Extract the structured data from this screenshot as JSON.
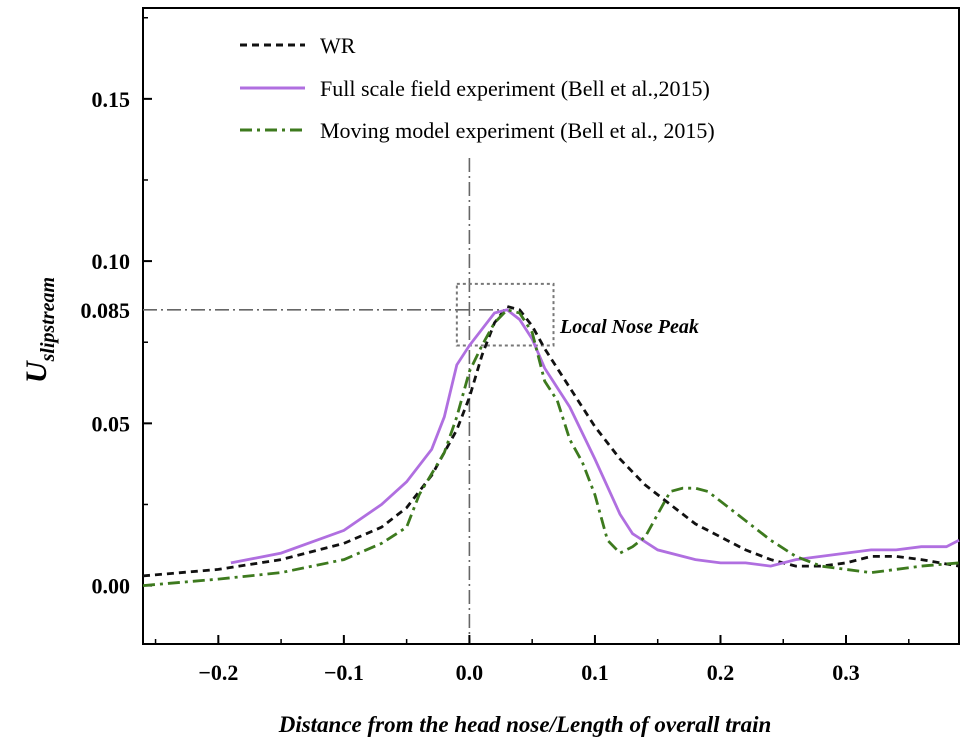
{
  "chart_data": {
    "type": "line",
    "title": "",
    "xlabel": "Distance from the head nose/Length of overall train",
    "ylabel": {
      "main": "U",
      "subscript": "slipstream"
    },
    "xlim": [
      -0.26,
      0.39
    ],
    "ylim": [
      -0.018,
      0.178
    ],
    "xticks": [
      -0.2,
      -0.1,
      0.0,
      0.1,
      0.2,
      0.3
    ],
    "xtick_labels": [
      "−0.2",
      "−0.1",
      "0.0",
      "0.1",
      "0.2",
      "0.3"
    ],
    "yticks": [
      0.0,
      0.05,
      0.1,
      0.15
    ],
    "ytick_labels": [
      "0.00",
      "0.05",
      "0.10",
      "0.15"
    ],
    "highlight": {
      "y_value": 0.085,
      "y_label": "0.085",
      "color": "#e03c3c"
    },
    "annotation": {
      "text": "Local Nose Peak",
      "box_x": [
        -0.01,
        0.067
      ],
      "box_y": [
        0.074,
        0.093
      ]
    },
    "reference_lines": {
      "vertical_x": 0.0,
      "horizontal_y": 0.085
    },
    "legend_position": "top-left",
    "series": [
      {
        "name": "WR",
        "color": "#111111",
        "style": "dashed",
        "x": [
          -0.26,
          -0.2,
          -0.15,
          -0.1,
          -0.07,
          -0.05,
          -0.03,
          -0.01,
          0.0,
          0.01,
          0.02,
          0.03,
          0.04,
          0.05,
          0.06,
          0.08,
          0.1,
          0.12,
          0.14,
          0.16,
          0.18,
          0.2,
          0.22,
          0.24,
          0.26,
          0.28,
          0.3,
          0.32,
          0.34,
          0.36,
          0.39
        ],
        "y": [
          0.003,
          0.005,
          0.008,
          0.013,
          0.018,
          0.024,
          0.034,
          0.048,
          0.058,
          0.071,
          0.081,
          0.086,
          0.085,
          0.08,
          0.073,
          0.061,
          0.049,
          0.039,
          0.031,
          0.025,
          0.019,
          0.015,
          0.011,
          0.008,
          0.006,
          0.006,
          0.007,
          0.009,
          0.009,
          0.008,
          0.006
        ]
      },
      {
        "name": "Full scale field experiment (Bell et al.,2015)",
        "color": "#b06fe0",
        "style": "solid",
        "x": [
          -0.19,
          -0.15,
          -0.1,
          -0.07,
          -0.05,
          -0.03,
          -0.02,
          -0.01,
          0.0,
          0.01,
          0.02,
          0.03,
          0.04,
          0.05,
          0.06,
          0.07,
          0.08,
          0.1,
          0.12,
          0.13,
          0.15,
          0.18,
          0.2,
          0.22,
          0.24,
          0.26,
          0.28,
          0.3,
          0.32,
          0.34,
          0.36,
          0.38,
          0.39
        ],
        "y": [
          0.007,
          0.01,
          0.017,
          0.025,
          0.032,
          0.042,
          0.052,
          0.068,
          0.074,
          0.079,
          0.084,
          0.085,
          0.082,
          0.076,
          0.067,
          0.061,
          0.055,
          0.039,
          0.022,
          0.016,
          0.011,
          0.008,
          0.007,
          0.007,
          0.006,
          0.008,
          0.009,
          0.01,
          0.011,
          0.011,
          0.012,
          0.012,
          0.014
        ]
      },
      {
        "name": "Moving model experiment (Bell et al., 2015)",
        "color": "#3d7a1e",
        "style": "dashdot",
        "x": [
          -0.26,
          -0.2,
          -0.15,
          -0.1,
          -0.07,
          -0.05,
          -0.04,
          -0.02,
          -0.01,
          0.0,
          0.01,
          0.02,
          0.03,
          0.04,
          0.05,
          0.06,
          0.07,
          0.08,
          0.09,
          0.1,
          0.11,
          0.12,
          0.13,
          0.14,
          0.15,
          0.16,
          0.17,
          0.18,
          0.19,
          0.2,
          0.22,
          0.24,
          0.26,
          0.28,
          0.3,
          0.32,
          0.34,
          0.36,
          0.39
        ],
        "y": [
          0.0,
          0.002,
          0.004,
          0.008,
          0.013,
          0.018,
          0.028,
          0.041,
          0.052,
          0.066,
          0.074,
          0.081,
          0.085,
          0.084,
          0.078,
          0.063,
          0.057,
          0.045,
          0.038,
          0.028,
          0.014,
          0.01,
          0.012,
          0.015,
          0.022,
          0.029,
          0.03,
          0.03,
          0.029,
          0.026,
          0.02,
          0.014,
          0.009,
          0.006,
          0.005,
          0.004,
          0.005,
          0.006,
          0.007
        ]
      }
    ]
  }
}
